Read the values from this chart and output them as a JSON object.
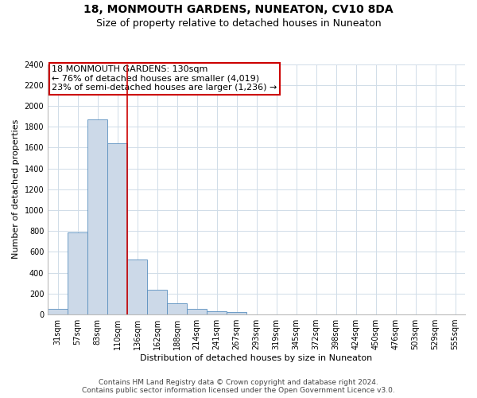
{
  "title": "18, MONMOUTH GARDENS, NUNEATON, CV10 8DA",
  "subtitle": "Size of property relative to detached houses in Nuneaton",
  "xlabel": "Distribution of detached houses by size in Nuneaton",
  "ylabel": "Number of detached properties",
  "categories": [
    "31sqm",
    "57sqm",
    "83sqm",
    "110sqm",
    "136sqm",
    "162sqm",
    "188sqm",
    "214sqm",
    "241sqm",
    "267sqm",
    "293sqm",
    "319sqm",
    "345sqm",
    "372sqm",
    "398sqm",
    "424sqm",
    "450sqm",
    "476sqm",
    "503sqm",
    "529sqm",
    "555sqm"
  ],
  "values": [
    55,
    790,
    1870,
    1640,
    530,
    238,
    108,
    57,
    33,
    20,
    0,
    0,
    0,
    0,
    0,
    0,
    0,
    0,
    0,
    0,
    0
  ],
  "bar_color": "#ccd9e8",
  "bar_edge_color": "#5a8fbf",
  "vline_index": 3.5,
  "vline_color": "#cc0000",
  "annotation_line1": "18 MONMOUTH GARDENS: 130sqm",
  "annotation_line2": "← 76% of detached houses are smaller (4,019)",
  "annotation_line3": "23% of semi-detached houses are larger (1,236) →",
  "annotation_box_color": "#ffffff",
  "annotation_box_edge_color": "#cc0000",
  "ylim": [
    0,
    2400
  ],
  "yticks": [
    0,
    200,
    400,
    600,
    800,
    1000,
    1200,
    1400,
    1600,
    1800,
    2000,
    2200,
    2400
  ],
  "footer_line1": "Contains HM Land Registry data © Crown copyright and database right 2024.",
  "footer_line2": "Contains public sector information licensed under the Open Government Licence v3.0.",
  "background_color": "#ffffff",
  "grid_color": "#d0dce8",
  "title_fontsize": 10,
  "subtitle_fontsize": 9,
  "axis_label_fontsize": 8,
  "tick_fontsize": 7,
  "annotation_fontsize": 8,
  "footer_fontsize": 6.5
}
